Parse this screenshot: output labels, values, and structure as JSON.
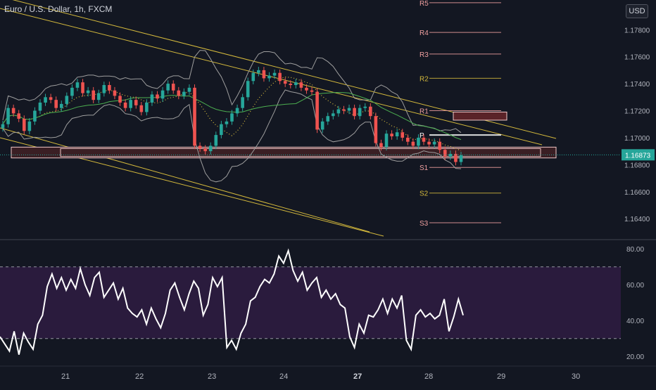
{
  "header": {
    "title": "Euro / U.S. Dollar, 1h, FXCM",
    "currency": "USD"
  },
  "colors": {
    "background": "#131722",
    "up": "#26a69a",
    "down": "#ef5350",
    "channel": "#d4b93c",
    "support_zone": "#f0c8c8",
    "rsi_line": "#ffffff",
    "rsi_band": "#2a1b3d",
    "ma": "#4caf50",
    "bollinger": "#9e9e9e"
  },
  "chart_data": [
    {
      "type": "candlestick",
      "title": "Euro / U.S. Dollar, 1h, FXCM",
      "x_ticks": [
        "21",
        "22",
        "23",
        "24",
        "27",
        "28",
        "29",
        "30"
      ],
      "y_ticks": [
        "1.16400",
        "1.16600",
        "1.16800",
        "1.17000",
        "1.17200",
        "1.17400",
        "1.17600",
        "1.17800"
      ],
      "ylim": [
        1.1625,
        1.1802
      ],
      "last_price": "1.16873",
      "pivot_levels": [
        {
          "label": "R4",
          "value": 1.1778,
          "color": "#f0a0a0"
        },
        {
          "label": "R3",
          "value": 1.1762,
          "color": "#f0a0a0"
        },
        {
          "label": "R2",
          "value": 1.1744,
          "color": "#d4b93c"
        },
        {
          "label": "R1",
          "value": 1.172,
          "color": "#f0a0a0"
        },
        {
          "label": "P",
          "value": 1.1702,
          "color": "#ffffff"
        },
        {
          "label": "S1",
          "value": 1.1678,
          "color": "#f0a0a0"
        },
        {
          "label": "S2",
          "value": 1.1659,
          "color": "#d4b93c"
        },
        {
          "label": "S3",
          "value": 1.1637,
          "color": "#f0a0a0"
        },
        {
          "label": "R5",
          "value": 1.18,
          "color": "#f0a0a0"
        }
      ],
      "support_zone": {
        "from": 1.1685,
        "to": 1.1693
      },
      "resistance_box": {
        "from": 1.1713,
        "to": 1.1719
      },
      "close_series": [
        1.171,
        1.1722,
        1.1718,
        1.1714,
        1.1705,
        1.1712,
        1.172,
        1.1726,
        1.173,
        1.1728,
        1.1722,
        1.1725,
        1.1731,
        1.1737,
        1.1741,
        1.1733,
        1.1735,
        1.1728,
        1.1733,
        1.1739,
        1.1735,
        1.1731,
        1.1726,
        1.1722,
        1.1728,
        1.1724,
        1.1719,
        1.1726,
        1.1732,
        1.1729,
        1.1735,
        1.174,
        1.1735,
        1.1731,
        1.1734,
        1.1737,
        1.1694,
        1.1692,
        1.169,
        1.1694,
        1.1702,
        1.171,
        1.1712,
        1.1718,
        1.1722,
        1.173,
        1.1742,
        1.1748,
        1.175,
        1.1744,
        1.1746,
        1.1748,
        1.1742,
        1.174,
        1.1739,
        1.1741,
        1.1737,
        1.1735,
        1.1734,
        1.1706,
        1.1712,
        1.1716,
        1.1718,
        1.1721,
        1.172,
        1.1722,
        1.1716,
        1.1722,
        1.1723,
        1.1716,
        1.1696,
        1.1693,
        1.1703,
        1.1701,
        1.1704,
        1.17,
        1.1697,
        1.1694,
        1.17,
        1.1697,
        1.1695,
        1.1697,
        1.1691,
        1.1686,
        1.1688,
        1.1682,
        1.1687
      ],
      "rsi": {
        "ylim": [
          15,
          84
        ],
        "y_ticks": [
          "20.00",
          "40.00",
          "60.00",
          "80.00"
        ],
        "overbought": 70,
        "oversold": 30,
        "values": [
          31,
          27,
          23,
          34,
          21,
          33,
          28,
          24,
          38,
          43,
          59,
          66,
          58,
          64,
          57,
          63,
          58,
          69,
          60,
          54,
          64,
          67,
          53,
          57,
          61,
          52,
          58,
          47,
          44,
          42,
          46,
          38,
          47,
          41,
          36,
          44,
          57,
          61,
          53,
          46,
          55,
          62,
          58,
          43,
          49,
          64,
          59,
          64,
          25,
          29,
          24,
          33,
          38,
          51,
          53,
          59,
          63,
          61,
          66,
          76,
          72,
          79,
          68,
          62,
          67,
          57,
          61,
          64,
          53,
          57,
          52,
          55,
          49,
          47,
          31,
          25,
          38,
          33,
          43,
          42,
          46,
          52,
          44,
          52,
          47,
          54,
          29,
          24,
          43,
          46,
          42,
          44,
          41,
          43,
          52,
          34,
          42,
          52,
          43
        ]
      }
    }
  ]
}
